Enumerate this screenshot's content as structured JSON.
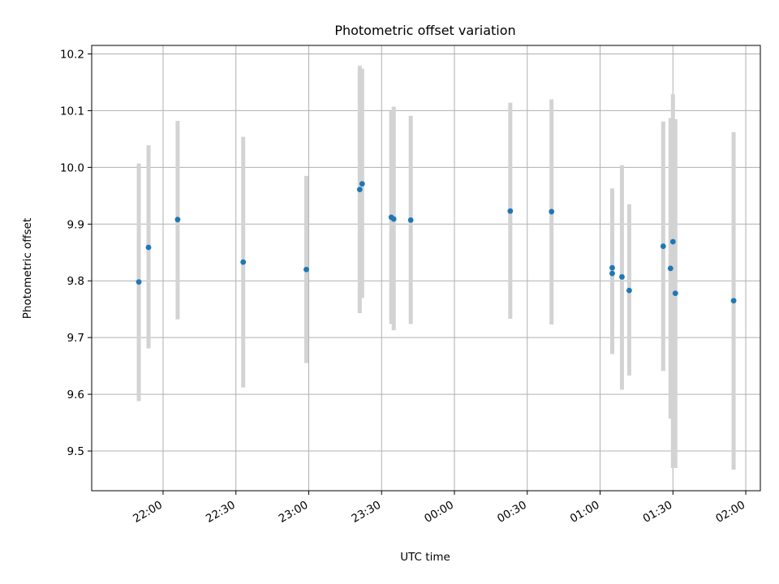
{
  "chart_data": {
    "type": "scatter",
    "title": "Photometric offset variation",
    "xlabel": "UTC time",
    "ylabel": "Photometric offset",
    "x_tick_labels": [
      "22:00",
      "22:30",
      "23:00",
      "23:30",
      "00:00",
      "00:30",
      "01:00",
      "01:30",
      "02:00"
    ],
    "x_tick_hours": [
      22.0,
      22.5,
      23.0,
      23.5,
      24.0,
      24.5,
      25.0,
      25.5,
      26.0
    ],
    "y_ticks": [
      9.5,
      9.6,
      9.7,
      9.8,
      9.9,
      10.0,
      10.1,
      10.2
    ],
    "y_tick_labels": [
      "9.5",
      "9.6",
      "9.7",
      "9.8",
      "9.9",
      "10.0",
      "10.1",
      "10.2"
    ],
    "xlim_hours": [
      21.51,
      26.1
    ],
    "ylim": [
      9.43,
      10.215
    ],
    "grid": true,
    "colors": {
      "marker": "#1f77b4",
      "errorbar": "#d3d3d3",
      "grid": "#b0b0b0"
    },
    "series": [
      {
        "points": [
          {
            "time": "21:50",
            "y": 9.798,
            "ylow": 9.588,
            "yhigh": 10.007
          },
          {
            "time": "21:54",
            "y": 9.859,
            "ylow": 9.681,
            "yhigh": 10.039
          },
          {
            "time": "22:06",
            "y": 9.908,
            "ylow": 9.732,
            "yhigh": 10.082
          },
          {
            "time": "22:33",
            "y": 9.833,
            "ylow": 9.612,
            "yhigh": 10.054
          },
          {
            "time": "22:59",
            "y": 9.82,
            "ylow": 9.655,
            "yhigh": 9.985
          },
          {
            "time": "23:21",
            "y": 9.961,
            "ylow": 9.743,
            "yhigh": 10.179
          },
          {
            "time": "23:22",
            "y": 9.971,
            "ylow": 9.77,
            "yhigh": 10.174
          },
          {
            "time": "23:34",
            "y": 9.912,
            "ylow": 9.724,
            "yhigh": 10.099
          },
          {
            "time": "23:35",
            "y": 9.909,
            "ylow": 9.713,
            "yhigh": 10.107
          },
          {
            "time": "23:42",
            "y": 9.907,
            "ylow": 9.724,
            "yhigh": 10.091
          },
          {
            "time": "00:23",
            "y": 9.923,
            "ylow": 9.733,
            "yhigh": 10.114
          },
          {
            "time": "00:40",
            "y": 9.922,
            "ylow": 9.723,
            "yhigh": 10.12
          },
          {
            "time": "01:05",
            "y": 9.823,
            "ylow": 9.685,
            "yhigh": 9.963
          },
          {
            "time": "01:05",
            "y": 9.813,
            "ylow": 9.671,
            "yhigh": 9.955
          },
          {
            "time": "01:09",
            "y": 9.807,
            "ylow": 9.608,
            "yhigh": 10.004
          },
          {
            "time": "01:12",
            "y": 9.783,
            "ylow": 9.633,
            "yhigh": 9.935
          },
          {
            "time": "01:26",
            "y": 9.861,
            "ylow": 9.641,
            "yhigh": 10.081
          },
          {
            "time": "01:29",
            "y": 9.822,
            "ylow": 9.557,
            "yhigh": 10.087
          },
          {
            "time": "01:30",
            "y": 9.869,
            "ylow": 9.47,
            "yhigh": 10.129
          },
          {
            "time": "01:31",
            "y": 9.778,
            "ylow": 9.47,
            "yhigh": 10.085
          },
          {
            "time": "01:55",
            "y": 9.765,
            "ylow": 9.467,
            "yhigh": 10.062
          }
        ]
      }
    ]
  }
}
